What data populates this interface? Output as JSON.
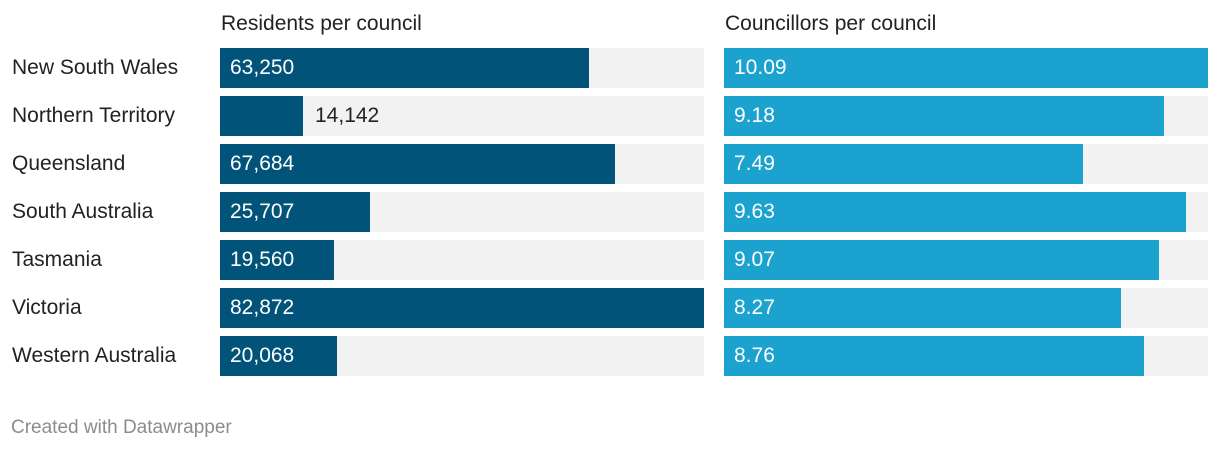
{
  "chart_data": [
    {
      "type": "bar",
      "orientation": "horizontal",
      "title": "Residents per council",
      "categories": [
        "New South Wales",
        "Northern Territory",
        "Queensland",
        "South Australia",
        "Tasmania",
        "Victoria",
        "Western Australia"
      ],
      "values": [
        63250,
        14142,
        67684,
        25707,
        19560,
        82872,
        20068
      ],
      "value_labels": [
        "63,250",
        "14,142",
        "67,684",
        "25,707",
        "19,560",
        "82,872",
        "20,068"
      ],
      "xlim": [
        0,
        82872
      ],
      "color": "#01537a",
      "track_color": "#f2f2f2",
      "grid": false
    },
    {
      "type": "bar",
      "orientation": "horizontal",
      "title": "Councillors per council",
      "categories": [
        "New South Wales",
        "Northern Territory",
        "Queensland",
        "South Australia",
        "Tasmania",
        "Victoria",
        "Western Australia"
      ],
      "values": [
        10.09,
        9.18,
        7.49,
        9.63,
        9.07,
        8.27,
        8.76
      ],
      "value_labels": [
        "10.09",
        "9.18",
        "7.49",
        "9.63",
        "9.07",
        "8.27",
        "8.76"
      ],
      "xlim": [
        0,
        10.09
      ],
      "color": "#1ba2cf",
      "track_color": "#f2f2f2",
      "grid": false
    }
  ],
  "footer": {
    "credit": "Created with Datawrapper"
  }
}
